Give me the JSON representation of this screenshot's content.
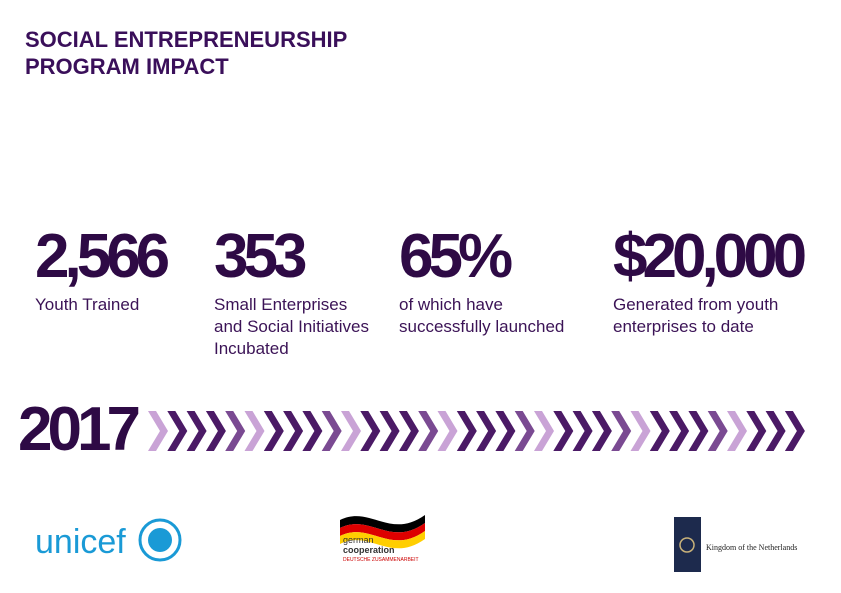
{
  "header": {
    "title_lines": [
      "SOCIAL ENTREPRENEURSHIP",
      "PROGRAM IMPACT"
    ]
  },
  "stats": [
    {
      "value": "2,566",
      "label_lines": [
        "Youth Trained"
      ]
    },
    {
      "value": "353",
      "label_lines": [
        "Small Enterprises",
        "and Social Initiatives",
        "Incubated"
      ]
    },
    {
      "value": "65%",
      "label_lines": [
        "of which have",
        "successfully  launched"
      ]
    },
    {
      "value": "$20,000",
      "label_lines": [
        "Generated from youth",
        "enterprises to date"
      ]
    }
  ],
  "year": "2017",
  "logos": {
    "unicef": "unicef",
    "german_lines": [
      "german",
      "cooperation"
    ],
    "german_sub": "DEUTSCHE ZUSAMMENARBEIT",
    "netherlands": "Kingdom of the Netherlands"
  }
}
